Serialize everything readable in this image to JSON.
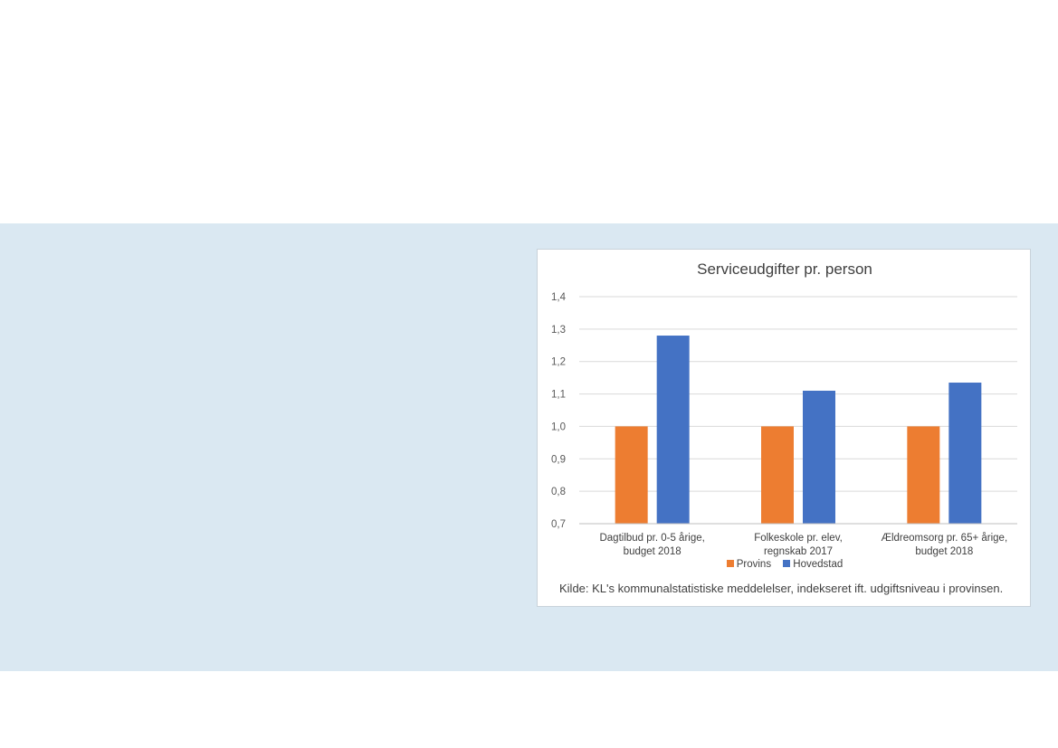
{
  "colors": {
    "background": "#ffffff",
    "band": "#dae8f2",
    "provins": "#ed7d31",
    "hovedstad": "#4472c4",
    "grid": "#d9d9d9"
  },
  "chart_data": {
    "type": "bar",
    "title": "Serviceudgifter pr. person",
    "categories": [
      [
        "Dagtilbud pr. 0-5 årige,",
        "budget 2018"
      ],
      [
        "Folkeskole pr. elev,",
        "regnskab 2017"
      ],
      [
        "Ældreomsorg pr. 65+ årige,",
        "budget 2018"
      ]
    ],
    "series": [
      {
        "name": "Provins",
        "color": "#ed7d31",
        "values": [
          1.0,
          1.0,
          1.0
        ]
      },
      {
        "name": "Hovedstad",
        "color": "#4472c4",
        "values": [
          1.28,
          1.11,
          1.135
        ]
      }
    ],
    "ylim": [
      0.7,
      1.4
    ],
    "yticks": [
      "0,7",
      "0,8",
      "0,9",
      "1,0",
      "1,1",
      "1,2",
      "1,3",
      "1,4"
    ],
    "ytick_values": [
      0.7,
      0.8,
      0.9,
      1.0,
      1.1,
      1.2,
      1.3,
      1.4
    ],
    "grid": true,
    "legend_position": "bottom",
    "note": "Kilde: KL's kommunalstatistiske meddelelser, indekseret ift. udgiftsniveau i provinsen."
  }
}
